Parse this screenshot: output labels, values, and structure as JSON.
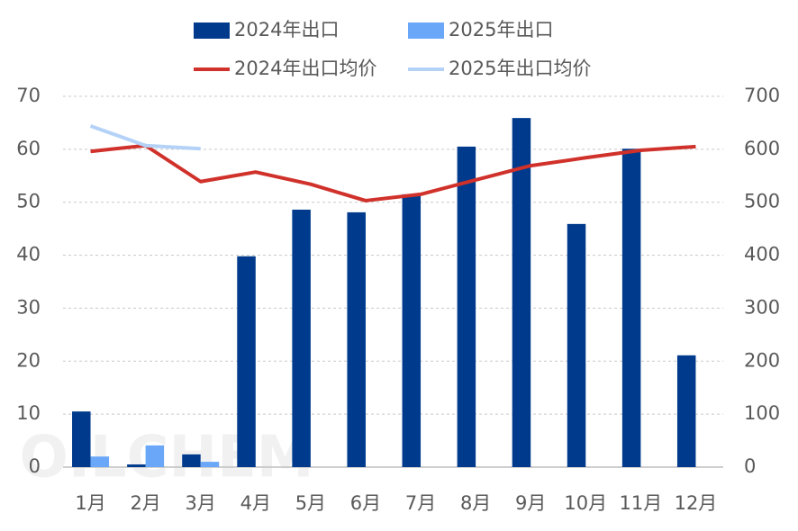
{
  "chart_data": {
    "type": "bar-line",
    "watermark": "OILCHEM",
    "categories": [
      "1月",
      "2月",
      "3月",
      "4月",
      "5月",
      "6月",
      "7月",
      "8月",
      "9月",
      "10月",
      "11月",
      "12月"
    ],
    "series": [
      {
        "name": "2024年出口",
        "type": "bar",
        "color": "#003a8c",
        "values": [
          10.5,
          0.5,
          2.4,
          39.8,
          48.6,
          48.1,
          51.5,
          60.5,
          65.9,
          45.9,
          60.1,
          21.1
        ]
      },
      {
        "name": "2025年出口",
        "type": "bar",
        "color": "#6aa7f8",
        "values": [
          2.0,
          4.1,
          1.0,
          null,
          null,
          null,
          null,
          null,
          null,
          null,
          null,
          null
        ]
      },
      {
        "name": "2024年出口均价",
        "type": "line",
        "axis": "y2",
        "color": "#d0312a",
        "values": [
          596,
          607,
          539,
          557,
          534,
          503,
          515,
          542,
          569,
          584,
          598,
          605
        ]
      },
      {
        "name": "2025年出口均价",
        "type": "line",
        "axis": "y2",
        "color": "#b4d2f7",
        "values": [
          644,
          607,
          601,
          null,
          null,
          null,
          null,
          null,
          null,
          null,
          null,
          null
        ]
      }
    ],
    "ylim": [
      0,
      70
    ],
    "yticks": [
      0,
      10,
      20,
      30,
      40,
      50,
      60,
      70
    ],
    "y2lim": [
      0,
      700
    ],
    "y2ticks": [
      0,
      100,
      200,
      300,
      400,
      500,
      600,
      700
    ],
    "grid": true
  }
}
